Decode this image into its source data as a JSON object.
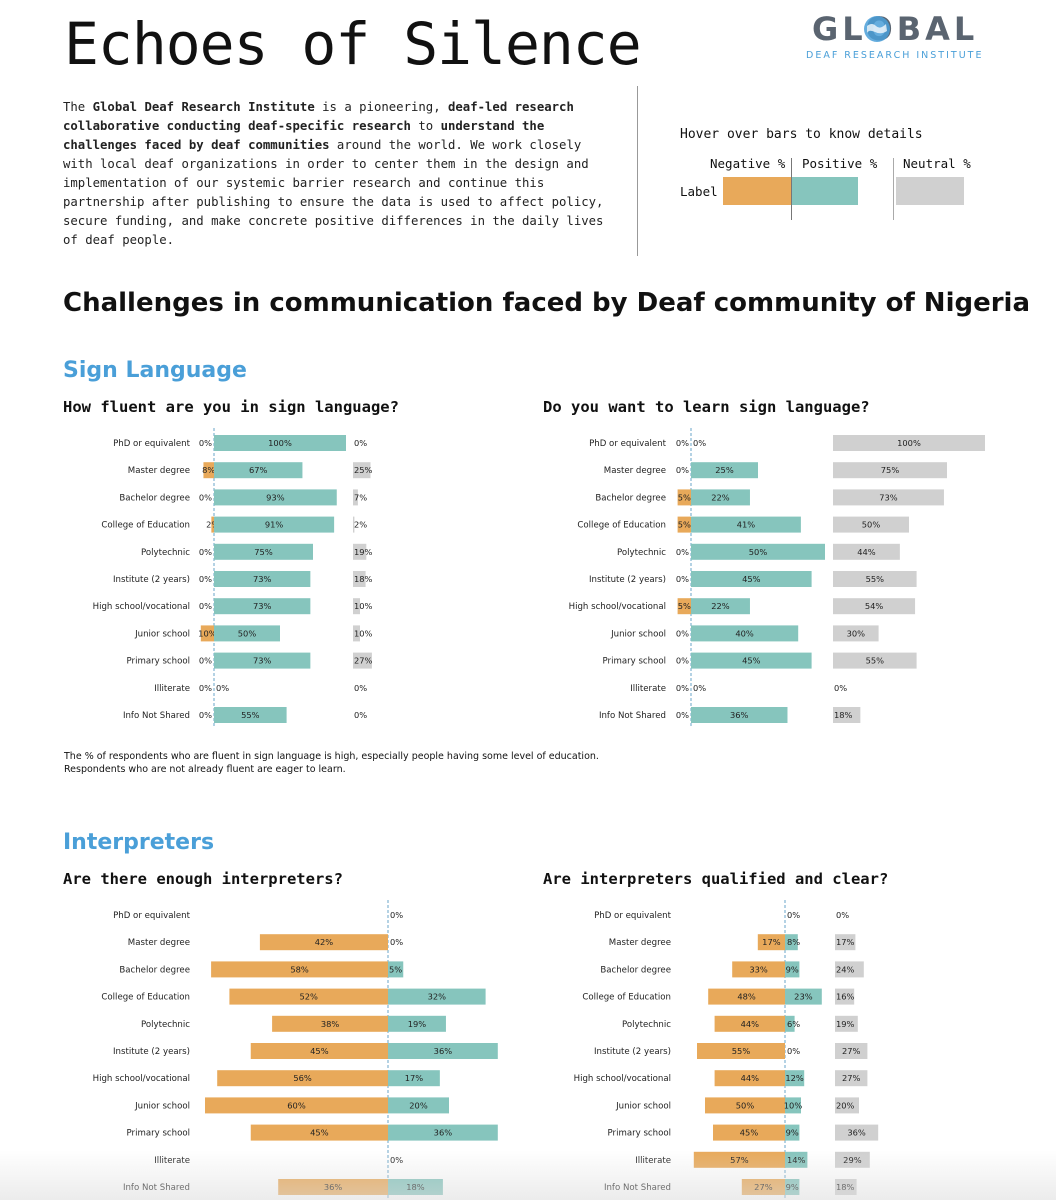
{
  "header": {
    "title": "Echoes of Silence",
    "logo_main": "GLOBAL",
    "logo_sub": "DEAF RESEARCH INSTITUTE"
  },
  "intro": {
    "p1": "The ",
    "b1": "Global Deaf Research Institute",
    "p2": " is a pioneering, ",
    "b2": "deaf-led research collaborative conducting deaf-specific research",
    "p3": " to ",
    "b3": "understand the challenges faced by deaf communities",
    "p4": " around the world. We work closely with local deaf organizations in order to center them in the design and implementation of our systemic barrier research and continue this partnership after publishing to ensure the data is used to affect policy, secure funding, and make concrete positive differences in the daily lives of deaf people."
  },
  "legend": {
    "hint": "Hover over bars to know details",
    "negative": "Negative %",
    "positive": "Positive %",
    "neutral": "Neutral %",
    "label": "Label",
    "colors": {
      "negative": "#e8a95a",
      "positive": "#86c5bd",
      "neutral": "#d0d0d0"
    }
  },
  "main_heading": "Challenges in communication faced by Deaf community of Nigeria",
  "sections": {
    "sign_language": "Sign Language",
    "interpreters": "Interpreters"
  },
  "note": {
    "line1": "The % of respondents who are fluent in sign language is high, especially people having some level of education.",
    "line2": "Respondents who are not already fluent are eager to learn."
  },
  "chart_data": [
    {
      "id": "fluent",
      "type": "bar",
      "title": "How fluent are you in sign language?",
      "categories": [
        "PhD or equivalent",
        "Master degree",
        "Bachelor degree",
        "College of Education",
        "Polytechnic",
        "Institute (2 years)",
        "High school/vocational",
        "Junior school",
        "Primary school",
        "Illiterate",
        "Info Not Shared"
      ],
      "series": [
        {
          "name": "Negative %",
          "values": [
            0,
            8,
            0,
            2,
            0,
            0,
            0,
            10,
            0,
            0,
            0
          ]
        },
        {
          "name": "Positive %",
          "values": [
            100,
            67,
            93,
            91,
            75,
            73,
            73,
            50,
            73,
            0,
            55
          ]
        },
        {
          "name": "Neutral %",
          "values": [
            0,
            25,
            7,
            2,
            19,
            18,
            10,
            10,
            27,
            0,
            0
          ]
        }
      ],
      "hide_neutral_for_illiterate": false
    },
    {
      "id": "learn",
      "type": "bar",
      "title": "Do you want to learn sign language?",
      "categories": [
        "PhD or equivalent",
        "Master degree",
        "Bachelor degree",
        "College of Education",
        "Polytechnic",
        "Institute (2 years)",
        "High school/vocational",
        "Junior school",
        "Primary school",
        "Illiterate",
        "Info Not Shared"
      ],
      "series": [
        {
          "name": "Negative %",
          "values": [
            0,
            0,
            5,
            5,
            0,
            0,
            5,
            0,
            0,
            0,
            0
          ]
        },
        {
          "name": "Positive %",
          "values": [
            0,
            25,
            22,
            41,
            50,
            45,
            22,
            40,
            45,
            0,
            36
          ]
        },
        {
          "name": "Neutral %",
          "values": [
            100,
            75,
            73,
            50,
            44,
            55,
            54,
            30,
            55,
            0,
            18
          ]
        }
      ]
    },
    {
      "id": "enough",
      "type": "bar",
      "title": "Are there enough interpreters?",
      "categories": [
        "PhD or equivalent",
        "Master degree",
        "Bachelor degree",
        "College of Education",
        "Polytechnic",
        "Institute (2 years)",
        "High school/vocational",
        "Junior school",
        "Primary school",
        "Illiterate",
        "Info Not Shared"
      ],
      "series": [
        {
          "name": "Negative %",
          "values": [
            null,
            42,
            58,
            52,
            38,
            45,
            56,
            60,
            45,
            null,
            36
          ]
        },
        {
          "name": "Positive %",
          "values": [
            0,
            0,
            5,
            32,
            19,
            36,
            17,
            20,
            36,
            0,
            18
          ]
        }
      ]
    },
    {
      "id": "qualified",
      "type": "bar",
      "title": "Are interpreters qualified and clear?",
      "categories": [
        "PhD or equivalent",
        "Master degree",
        "Bachelor degree",
        "College of Education",
        "Polytechnic",
        "Institute (2 years)",
        "High school/vocational",
        "Junior school",
        "Primary school",
        "Illiterate",
        "Info Not Shared"
      ],
      "series": [
        {
          "name": "Negative %",
          "values": [
            null,
            17,
            33,
            48,
            44,
            55,
            44,
            50,
            45,
            57,
            27
          ]
        },
        {
          "name": "Positive %",
          "values": [
            0,
            8,
            9,
            23,
            6,
            0,
            12,
            10,
            9,
            14,
            9
          ]
        },
        {
          "name": "Neutral %",
          "values": [
            0,
            17,
            24,
            16,
            19,
            27,
            27,
            20,
            36,
            29,
            18
          ]
        }
      ]
    }
  ]
}
